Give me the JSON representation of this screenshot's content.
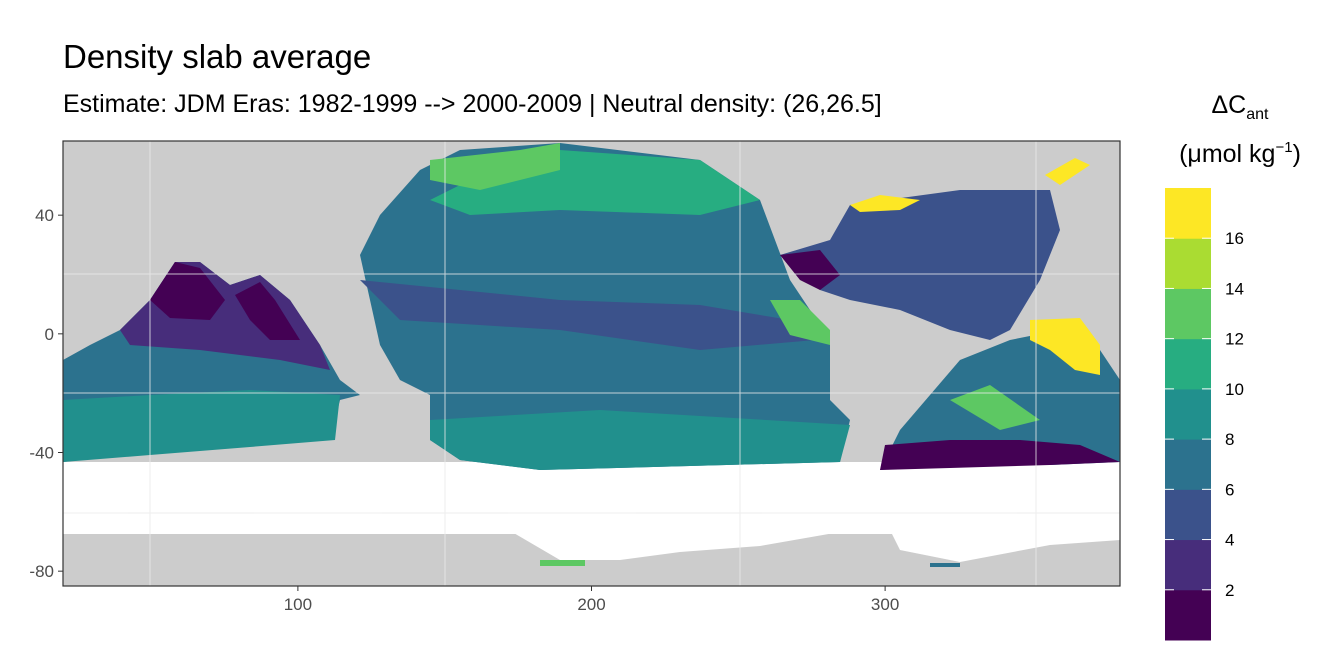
{
  "title": "Density slab average",
  "subtitle": "Estimate: JDM Eras: 1982-1999 --> 2000-2009 | Neutral density: (26,26.5]",
  "map": {
    "x_ticks": [
      100,
      200,
      300
    ],
    "y_ticks": [
      40,
      0,
      -40,
      -80
    ],
    "xlim": [
      20,
      380
    ],
    "ylim": [
      -85,
      65
    ],
    "grid": true,
    "land_color": "#cccccc",
    "nodata_color": "#ffffff"
  },
  "legend": {
    "title_main": "ΔC",
    "title_sub": "ant",
    "unit_text": "(μmol kg",
    "unit_sup": "−1",
    "unit_close": ")",
    "placement": "right",
    "breaks": [
      2,
      4,
      6,
      8,
      10,
      12,
      14,
      16
    ],
    "colors": [
      "#440154",
      "#472d7b",
      "#3b528b",
      "#2c728e",
      "#21908d",
      "#27ad81",
      "#5dc863",
      "#aadc32",
      "#fde725"
    ]
  }
}
